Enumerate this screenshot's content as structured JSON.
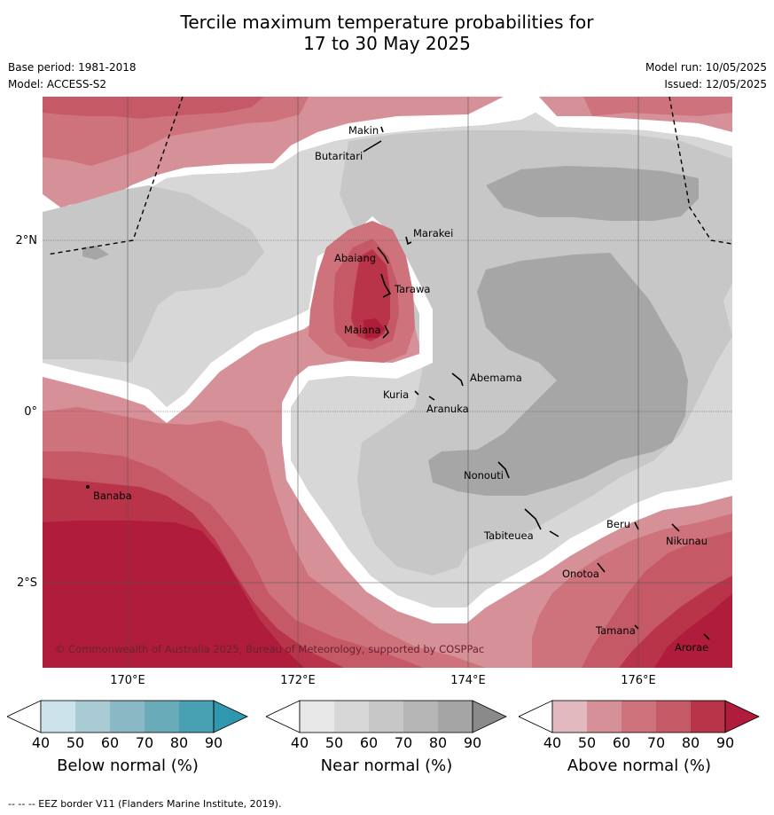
{
  "title": {
    "line1": "Tercile maximum temperature probabilities for",
    "line2": "17 to 30 May 2025"
  },
  "meta": {
    "base_period": "Base period: 1981-2018",
    "model": "Model: ACCESS-S2",
    "model_run": "Model run: 10/05/2025",
    "issued": "Issued: 12/05/2025"
  },
  "map": {
    "lon_labels": [
      "170°E",
      "172°E",
      "174°E",
      "176°E"
    ],
    "lat_labels": [
      "2°N",
      "0°",
      "2°S"
    ],
    "islands": {
      "makin": "Makin",
      "butaritari": "Butaritari",
      "marakei": "Marakei",
      "abaiang": "Abaiang",
      "tarawa": "Tarawa",
      "maiana": "Maiana",
      "abemama": "Abemama",
      "kuria": "Kuria",
      "aranuka": "Aranuka",
      "nonouti": "Nonouti",
      "banaba": "Banaba",
      "tabiteuea": "Tabiteuea",
      "beru": "Beru",
      "nikunau": "Nikunau",
      "onotoa": "Onotoa",
      "tamana": "Tamana",
      "arorae": "Arorae"
    },
    "copyright": "© Commonwealth of Australia 2025, Bureau of Meteorology, supported by COSPPac"
  },
  "colorbars": [
    {
      "label": "Below normal (%)",
      "ticks": [
        "40",
        "50",
        "60",
        "70",
        "80",
        "90"
      ],
      "colors": [
        "#ffffff",
        "#cbe3ea",
        "#a9cbd3",
        "#8ab8c4",
        "#6aabba",
        "#48a1b2",
        "#2f98ae"
      ]
    },
    {
      "label": "Near normal (%)",
      "ticks": [
        "40",
        "50",
        "60",
        "70",
        "80",
        "90"
      ],
      "colors": [
        "#ffffff",
        "#e7e7e7",
        "#d7d7d7",
        "#c7c7c7",
        "#b6b6b6",
        "#a5a5a5",
        "#8a8a8a"
      ]
    },
    {
      "label": "Above normal (%)",
      "ticks": [
        "40",
        "50",
        "60",
        "70",
        "80",
        "90"
      ],
      "colors": [
        "#ffffff",
        "#e1b9bf",
        "#d69097",
        "#ce727c",
        "#c55a66",
        "#b93349",
        "#b01c3c"
      ]
    }
  ],
  "footnote": "--  --  -- EEZ border V11 (Flanders Marine Institute, 2019)."
}
